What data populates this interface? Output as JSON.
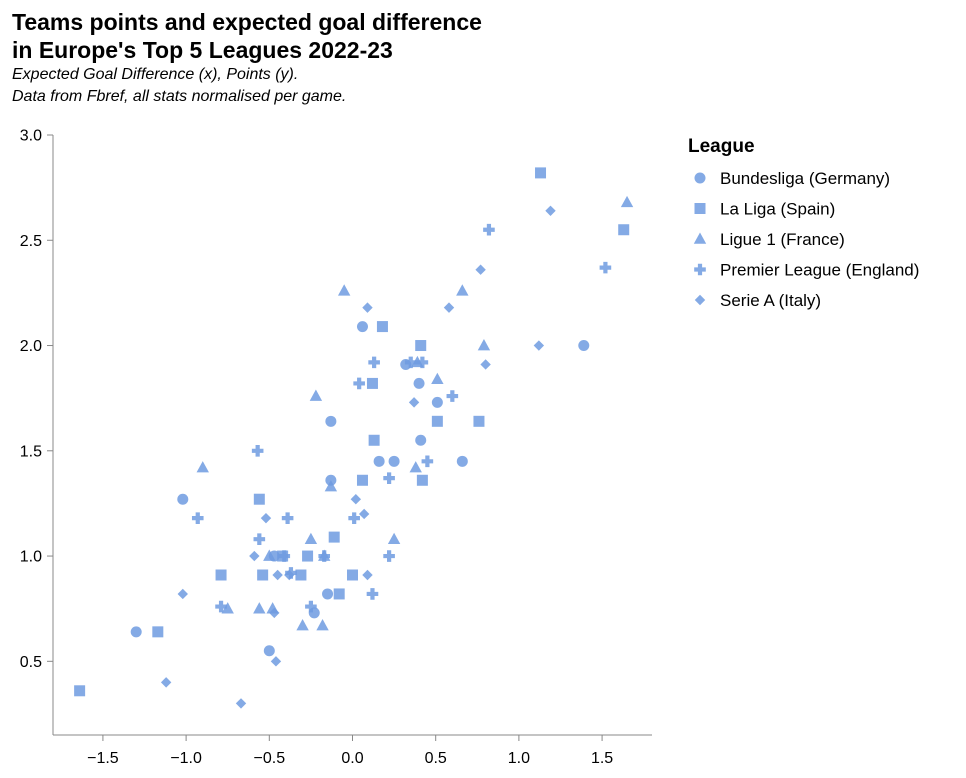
{
  "title_lines": [
    "Teams points and expected goal difference",
    "in Europe's Top 5 Leagues 2022-23"
  ],
  "subtitle_lines": [
    "Expected Goal Difference (x), Points (y).",
    "Data from Fbref, all stats normalised per game."
  ],
  "colors": {
    "marker": "#6f9be0",
    "axis": "#888888"
  },
  "chart_data": {
    "type": "scatter",
    "xlabel": "",
    "ylabel": "",
    "xlim": [
      -1.8,
      1.8
    ],
    "ylim": [
      0.15,
      3.0
    ],
    "x_ticks": [
      -1.5,
      -1.0,
      -0.5,
      0.0,
      0.5,
      1.0,
      1.5
    ],
    "x_tick_labels": [
      "−1.5",
      "−1.0",
      "−0.5",
      "0.0",
      "0.5",
      "1.0",
      "1.5"
    ],
    "y_ticks": [
      0.5,
      1.0,
      1.5,
      2.0,
      2.5,
      3.0
    ],
    "y_tick_labels": [
      "0.5",
      "1.0",
      "1.5",
      "2.0",
      "2.5",
      "3.0"
    ],
    "grid": false,
    "legend": {
      "title": "League",
      "placement": "right"
    },
    "series": [
      {
        "name": "Bundesliga (Germany)",
        "shape": "circle",
        "points": [
          [
            1.39,
            2.0
          ],
          [
            0.06,
            2.09
          ],
          [
            0.32,
            1.91
          ],
          [
            0.4,
            1.82
          ],
          [
            0.51,
            1.73
          ],
          [
            -0.13,
            1.64
          ],
          [
            0.41,
            1.55
          ],
          [
            0.16,
            1.45
          ],
          [
            0.25,
            1.45
          ],
          [
            0.66,
            1.45
          ],
          [
            -0.13,
            1.36
          ],
          [
            -1.02,
            1.27
          ],
          [
            -0.47,
            1.0
          ],
          [
            -0.15,
            0.82
          ],
          [
            -0.23,
            0.73
          ],
          [
            -1.3,
            0.64
          ],
          [
            -0.5,
            0.55
          ]
        ]
      },
      {
        "name": "La Liga (Spain)",
        "shape": "square",
        "points": [
          [
            1.13,
            2.82
          ],
          [
            1.63,
            2.55
          ],
          [
            0.18,
            2.09
          ],
          [
            0.41,
            2.0
          ],
          [
            0.12,
            1.82
          ],
          [
            0.51,
            1.64
          ],
          [
            0.76,
            1.64
          ],
          [
            0.13,
            1.55
          ],
          [
            0.06,
            1.36
          ],
          [
            0.42,
            1.36
          ],
          [
            -0.56,
            1.27
          ],
          [
            -0.11,
            1.09
          ],
          [
            -0.27,
            1.0
          ],
          [
            -0.42,
            1.0
          ],
          [
            -0.79,
            0.91
          ],
          [
            -0.54,
            0.91
          ],
          [
            -0.31,
            0.91
          ],
          [
            0.0,
            0.91
          ],
          [
            -0.08,
            0.82
          ],
          [
            -1.17,
            0.64
          ],
          [
            -1.64,
            0.36
          ]
        ]
      },
      {
        "name": "Ligue 1 (France)",
        "shape": "triangle",
        "points": [
          [
            1.65,
            2.68
          ],
          [
            -0.05,
            2.26
          ],
          [
            0.66,
            2.26
          ],
          [
            0.79,
            2.0
          ],
          [
            0.51,
            1.84
          ],
          [
            -0.22,
            1.76
          ],
          [
            0.39,
            1.92
          ],
          [
            -0.9,
            1.42
          ],
          [
            0.38,
            1.42
          ],
          [
            -0.13,
            1.33
          ],
          [
            -0.25,
            1.08
          ],
          [
            0.25,
            1.08
          ],
          [
            -0.17,
            1.0
          ],
          [
            -0.5,
            1.0
          ],
          [
            -0.56,
            0.75
          ],
          [
            -0.75,
            0.75
          ],
          [
            -0.48,
            0.75
          ],
          [
            -0.3,
            0.67
          ],
          [
            -0.18,
            0.67
          ]
        ]
      },
      {
        "name": "Premier League (England)",
        "shape": "plus",
        "points": [
          [
            0.82,
            2.55
          ],
          [
            1.52,
            2.37
          ],
          [
            0.13,
            1.92
          ],
          [
            0.35,
            1.92
          ],
          [
            0.42,
            1.92
          ],
          [
            0.04,
            1.82
          ],
          [
            0.6,
            1.76
          ],
          [
            -0.57,
            1.5
          ],
          [
            0.45,
            1.45
          ],
          [
            0.22,
            1.37
          ],
          [
            0.01,
            1.18
          ],
          [
            -0.93,
            1.18
          ],
          [
            -0.39,
            1.18
          ],
          [
            -0.56,
            1.08
          ],
          [
            -0.41,
            1.0
          ],
          [
            -0.17,
            1.0
          ],
          [
            0.22,
            1.0
          ],
          [
            -0.37,
            0.92
          ],
          [
            -0.79,
            0.76
          ],
          [
            -0.25,
            0.76
          ],
          [
            0.12,
            0.82
          ]
        ]
      },
      {
        "name": "Serie A (Italy)",
        "shape": "diamond",
        "points": [
          [
            1.19,
            2.64
          ],
          [
            0.77,
            2.36
          ],
          [
            0.58,
            2.18
          ],
          [
            0.09,
            2.18
          ],
          [
            1.12,
            2.0
          ],
          [
            0.8,
            1.91
          ],
          [
            0.37,
            1.73
          ],
          [
            0.02,
            1.27
          ],
          [
            0.07,
            1.2
          ],
          [
            -0.52,
            1.18
          ],
          [
            -0.59,
            1.0
          ],
          [
            -0.45,
            0.91
          ],
          [
            -0.38,
            0.91
          ],
          [
            0.09,
            0.91
          ],
          [
            -1.02,
            0.82
          ],
          [
            -0.47,
            0.73
          ],
          [
            -1.12,
            0.4
          ],
          [
            -0.46,
            0.5
          ],
          [
            -0.67,
            0.3
          ]
        ]
      }
    ]
  }
}
